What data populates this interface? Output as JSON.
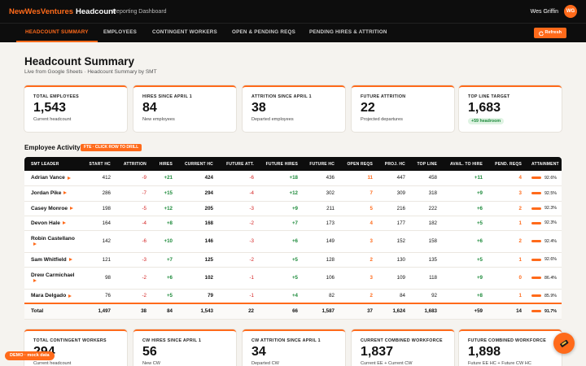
{
  "header": {
    "brand": "NewWesVentures",
    "brand_suffix": "Headcount",
    "subtitle": "Reporting Dashboard",
    "user": "Wes Griffin",
    "avatar": "WG"
  },
  "nav": {
    "tabs": [
      "HEADCOUNT SUMMARY",
      "EMPLOYEES",
      "CONTINGENT WORKERS",
      "OPEN & PENDING REQS",
      "PENDING HIRES & ATTRITION"
    ],
    "active": 0,
    "refresh": "Refresh"
  },
  "page": {
    "title": "Headcount Summary",
    "subtitle": "Live from Google Sheets · Headcount Summary by SMT"
  },
  "kpis": [
    {
      "label": "TOTAL EMPLOYEES",
      "value": "1,543",
      "note": "Current headcount"
    },
    {
      "label": "HIRES SINCE APRIL 1",
      "value": "84",
      "note": "New employees"
    },
    {
      "label": "ATTRITION SINCE APRIL 1",
      "value": "38",
      "note": "Departed employees"
    },
    {
      "label": "FUTURE ATTRITION",
      "value": "22",
      "note": "Projected departures"
    },
    {
      "label": "TOP LINE TARGET",
      "value": "1,683",
      "badge": "+59 headroom"
    }
  ],
  "section": {
    "title": "Employee Activity",
    "pill": "FTE · CLICK ROW TO DRILL"
  },
  "table": {
    "columns": [
      "SMT LEADER",
      "START HC",
      "ATTRITION",
      "HIRES",
      "CURRENT HC",
      "FUTURE ATT.",
      "FUTURE HIRES",
      "FUTURE HC",
      "OPEN REQS",
      "PROJ. HC",
      "TOP LINE",
      "AVAIL. TO HIRE",
      "PEND. REQS",
      "ATTAINMENT"
    ],
    "rows": [
      [
        "Adrian Vance",
        "412",
        "-9",
        "+21",
        "424",
        "-6",
        "+18",
        "436",
        "11",
        "447",
        "458",
        "+11",
        "4",
        "92.6%"
      ],
      [
        "Jordan Pike",
        "286",
        "-7",
        "+15",
        "294",
        "-4",
        "+12",
        "302",
        "7",
        "309",
        "318",
        "+9",
        "3",
        "92.5%"
      ],
      [
        "Casey Monroe",
        "198",
        "-5",
        "+12",
        "205",
        "-3",
        "+9",
        "211",
        "5",
        "216",
        "222",
        "+6",
        "2",
        "92.3%"
      ],
      [
        "Devon Hale",
        "164",
        "-4",
        "+8",
        "168",
        "-2",
        "+7",
        "173",
        "4",
        "177",
        "182",
        "+5",
        "1",
        "92.3%"
      ],
      [
        "Robin Castellano",
        "142",
        "-6",
        "+10",
        "146",
        "-3",
        "+6",
        "149",
        "3",
        "152",
        "158",
        "+6",
        "2",
        "92.4%"
      ],
      [
        "Sam Whitfield",
        "121",
        "-3",
        "+7",
        "125",
        "-2",
        "+5",
        "128",
        "2",
        "130",
        "135",
        "+5",
        "1",
        "92.6%"
      ],
      [
        "Drew Carmichael",
        "98",
        "-2",
        "+6",
        "102",
        "-1",
        "+5",
        "106",
        "3",
        "109",
        "118",
        "+9",
        "0",
        "86.4%"
      ],
      [
        "Mara Delgado",
        "76",
        "-2",
        "+5",
        "79",
        "-1",
        "+4",
        "82",
        "2",
        "84",
        "92",
        "+8",
        "1",
        "85.9%"
      ]
    ],
    "total": [
      "Total",
      "1,497",
      "38",
      "84",
      "1,543",
      "22",
      "66",
      "1,587",
      "37",
      "1,624",
      "1,683",
      "+59",
      "14",
      "91.7%"
    ]
  },
  "cw_kpis": [
    {
      "label": "TOTAL CONTINGENT WORKERS",
      "value": "294",
      "note": "Current headcount"
    },
    {
      "label": "CW HIRES SINCE APRIL 1",
      "value": "56",
      "note": "New CW"
    },
    {
      "label": "CW ATTRITION SINCE APRIL 1",
      "value": "34",
      "note": "Departed CW"
    },
    {
      "label": "CURRENT COMBINED WORKFORCE",
      "value": "1,837",
      "note": "Current EE + Current CW"
    },
    {
      "label": "FUTURE COMBINED WORKFORCE",
      "value": "1,898",
      "note": "Future EE HC + Future CW HC"
    }
  ],
  "demo_badge": "DEMO · mock data"
}
